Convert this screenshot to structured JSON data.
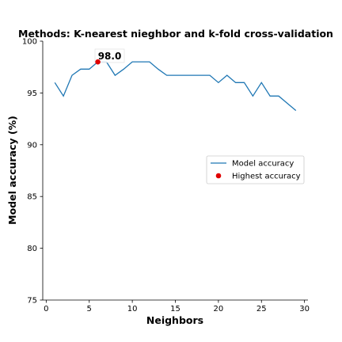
{
  "chart_data": {
    "type": "line",
    "title": "Methods: K-nearest nieghbor and k-fold cross-validation",
    "xlabel": "Neighbors",
    "ylabel": "Model accuracy (%)",
    "xlim": [
      -0.4,
      30.4
    ],
    "ylim": [
      75,
      100
    ],
    "xticks": [
      "0",
      "5",
      "10",
      "15",
      "20",
      "25",
      "30"
    ],
    "yticks": [
      "75",
      "80",
      "85",
      "90",
      "95",
      "100"
    ],
    "grid": false,
    "legend_position": "center-right",
    "series": [
      {
        "name": "Model accuracy",
        "color": "#1f77b4",
        "x": [
          1,
          2,
          3,
          4,
          5,
          6,
          7,
          8,
          9,
          10,
          11,
          12,
          13,
          14,
          15,
          16,
          17,
          18,
          19,
          20,
          21,
          22,
          23,
          24,
          25,
          26,
          27,
          28,
          29
        ],
        "y": [
          96.0,
          94.7,
          96.7,
          97.3,
          97.3,
          98.0,
          98.0,
          96.7,
          97.3,
          98.0,
          98.0,
          98.0,
          97.3,
          96.7,
          96.7,
          96.7,
          96.7,
          96.7,
          96.7,
          96.0,
          96.7,
          96.0,
          96.0,
          94.7,
          96.0,
          94.7,
          94.7,
          94.0,
          93.3
        ]
      }
    ],
    "highlight": {
      "name": "Highest accuracy",
      "color": "#e00000",
      "x": 6,
      "y": 98.0,
      "label": "98.0"
    }
  }
}
